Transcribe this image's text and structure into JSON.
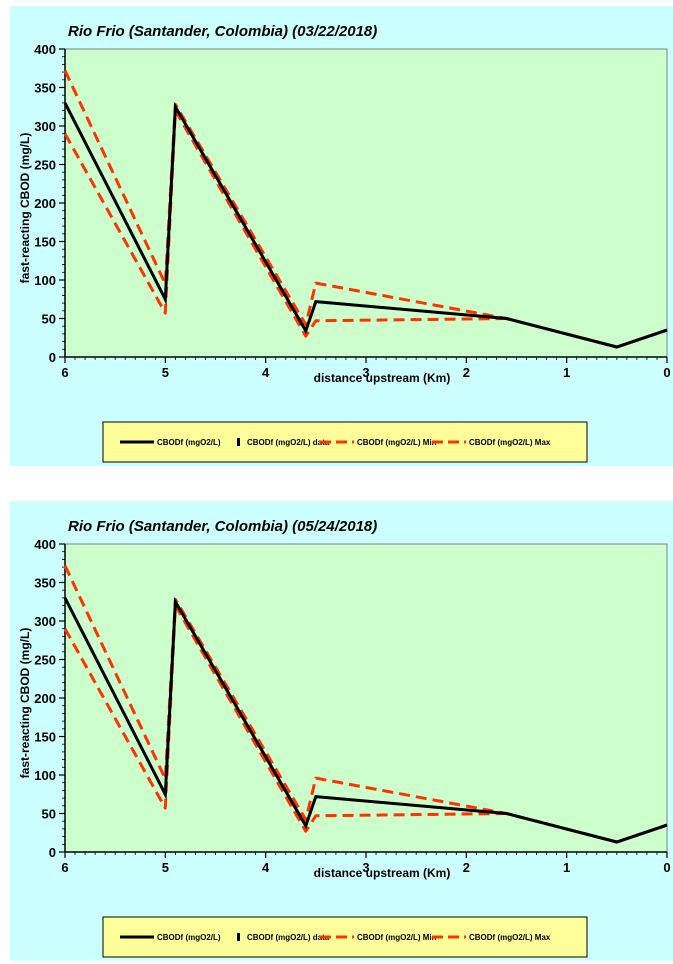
{
  "colors": {
    "outer_bg": "#ccffff",
    "plot_bg": "#ccffcc",
    "legend_bg": "#ffff99",
    "model": "#000000",
    "min": "#ff3300",
    "max": "#ff3300",
    "min_tail": "#4a86c8"
  },
  "chart_data": [
    {
      "type": "line",
      "title": "Rio Frio (Santander, Colombia) (03/22/2018)",
      "xlabel": "distance upstream (Km)",
      "ylabel": "fast-reacting CBOD (mg/L)",
      "xlim": [
        6,
        0
      ],
      "ylim": [
        0,
        400
      ],
      "xticks": [
        "6",
        "5",
        "4",
        "3",
        "2",
        "1",
        "0"
      ],
      "yticks": [
        "0",
        "50",
        "100",
        "150",
        "200",
        "250",
        "300",
        "350",
        "400"
      ],
      "grid": false,
      "legend_position": "bottom",
      "series": [
        {
          "name": "CBODf (mgO2/L)",
          "x": [
            6,
            5,
            4.9,
            3.6,
            3.5,
            1.6,
            0.5,
            0
          ],
          "values": [
            330,
            75,
            325,
            34,
            72,
            50,
            13,
            35
          ]
        },
        {
          "name": "CBODf (mgO2/L) data",
          "x": [],
          "values": []
        },
        {
          "name": "CBODf (mgO2/L) Min",
          "x": [
            6,
            5,
            4.9,
            3.6,
            3.5,
            1.6,
            0.5,
            0
          ],
          "values": [
            290,
            57,
            320,
            27,
            47,
            50,
            13,
            35
          ]
        },
        {
          "name": "CBODf (mgO2/L) Max",
          "x": [
            6,
            5,
            4.9,
            3.6,
            3.5,
            1.6,
            0.5,
            0
          ],
          "values": [
            372,
            95,
            328,
            42,
            96,
            50,
            13,
            35
          ]
        }
      ]
    },
    {
      "type": "line",
      "title": "Rio Frio (Santander, Colombia) (05/24/2018)",
      "xlabel": "distance upstream (Km)",
      "ylabel": "fast-reacting CBOD (mg/L)",
      "xlim": [
        6,
        0
      ],
      "ylim": [
        0,
        400
      ],
      "xticks": [
        "6",
        "5",
        "4",
        "3",
        "2",
        "1",
        "0"
      ],
      "yticks": [
        "0",
        "50",
        "100",
        "150",
        "200",
        "250",
        "300",
        "350",
        "400"
      ],
      "grid": false,
      "legend_position": "bottom",
      "series": [
        {
          "name": "CBODf (mgO2/L)",
          "x": [
            6,
            5,
            4.9,
            3.6,
            3.5,
            1.6,
            0.5,
            0
          ],
          "values": [
            330,
            75,
            325,
            34,
            72,
            50,
            13,
            35
          ]
        },
        {
          "name": "CBODf (mgO2/L) data",
          "x": [],
          "values": []
        },
        {
          "name": "CBODf (mgO2/L) Min",
          "x": [
            6,
            5,
            4.9,
            3.6,
            3.5,
            1.6,
            0.5,
            0
          ],
          "values": [
            290,
            57,
            320,
            27,
            47,
            50,
            13,
            35
          ]
        },
        {
          "name": "CBODf (mgO2/L) Max",
          "x": [
            6,
            5,
            4.9,
            3.6,
            3.5,
            1.6,
            0.5,
            0
          ],
          "values": [
            372,
            95,
            328,
            42,
            96,
            50,
            13,
            35
          ]
        }
      ]
    }
  ]
}
